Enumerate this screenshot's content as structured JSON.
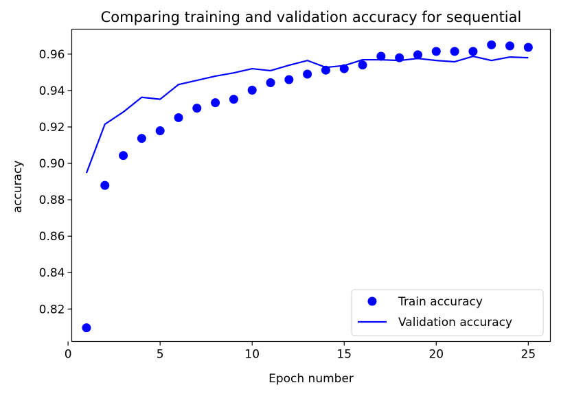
{
  "chart_data": {
    "type": "line",
    "title": "Comparing training and validation accuracy for sequential",
    "xlabel": "Epoch number",
    "ylabel": "accuracy",
    "xlim": [
      0.2,
      26.2
    ],
    "ylim": [
      0.8022,
      0.9737
    ],
    "xticks": [
      0,
      5,
      10,
      15,
      20,
      25
    ],
    "xtick_labels": [
      "0",
      "5",
      "10",
      "15",
      "20",
      "25"
    ],
    "yticks": [
      0.82,
      0.84,
      0.86,
      0.88,
      0.9,
      0.92,
      0.94,
      0.96
    ],
    "ytick_labels": [
      "0.82",
      "0.84",
      "0.86",
      "0.88",
      "0.90",
      "0.92",
      "0.94",
      "0.96"
    ],
    "grid": false,
    "legend_position": "lower-right",
    "x": [
      1,
      2,
      3,
      4,
      5,
      6,
      7,
      8,
      9,
      10,
      11,
      12,
      13,
      14,
      15,
      16,
      17,
      18,
      19,
      20,
      21,
      22,
      23,
      24,
      25
    ],
    "series": [
      {
        "name": "Train accuracy",
        "style": "markers",
        "color": "#0000ff",
        "values": [
          0.8097,
          0.8879,
          0.9043,
          0.9137,
          0.9179,
          0.9251,
          0.9303,
          0.9333,
          0.9352,
          0.9402,
          0.9443,
          0.946,
          0.949,
          0.9512,
          0.952,
          0.954,
          0.9588,
          0.958,
          0.9596,
          0.9615,
          0.9615,
          0.9615,
          0.9651,
          0.9645,
          0.9637
        ]
      },
      {
        "name": "Validation accuracy",
        "style": "line",
        "color": "#0000ff",
        "values": [
          0.8947,
          0.9215,
          0.9282,
          0.9363,
          0.9352,
          0.9433,
          0.9456,
          0.9479,
          0.9497,
          0.952,
          0.9509,
          0.9539,
          0.9565,
          0.9527,
          0.9537,
          0.9569,
          0.9569,
          0.9565,
          0.9576,
          0.9565,
          0.9558,
          0.9588,
          0.9565,
          0.9584,
          0.958
        ]
      }
    ]
  }
}
